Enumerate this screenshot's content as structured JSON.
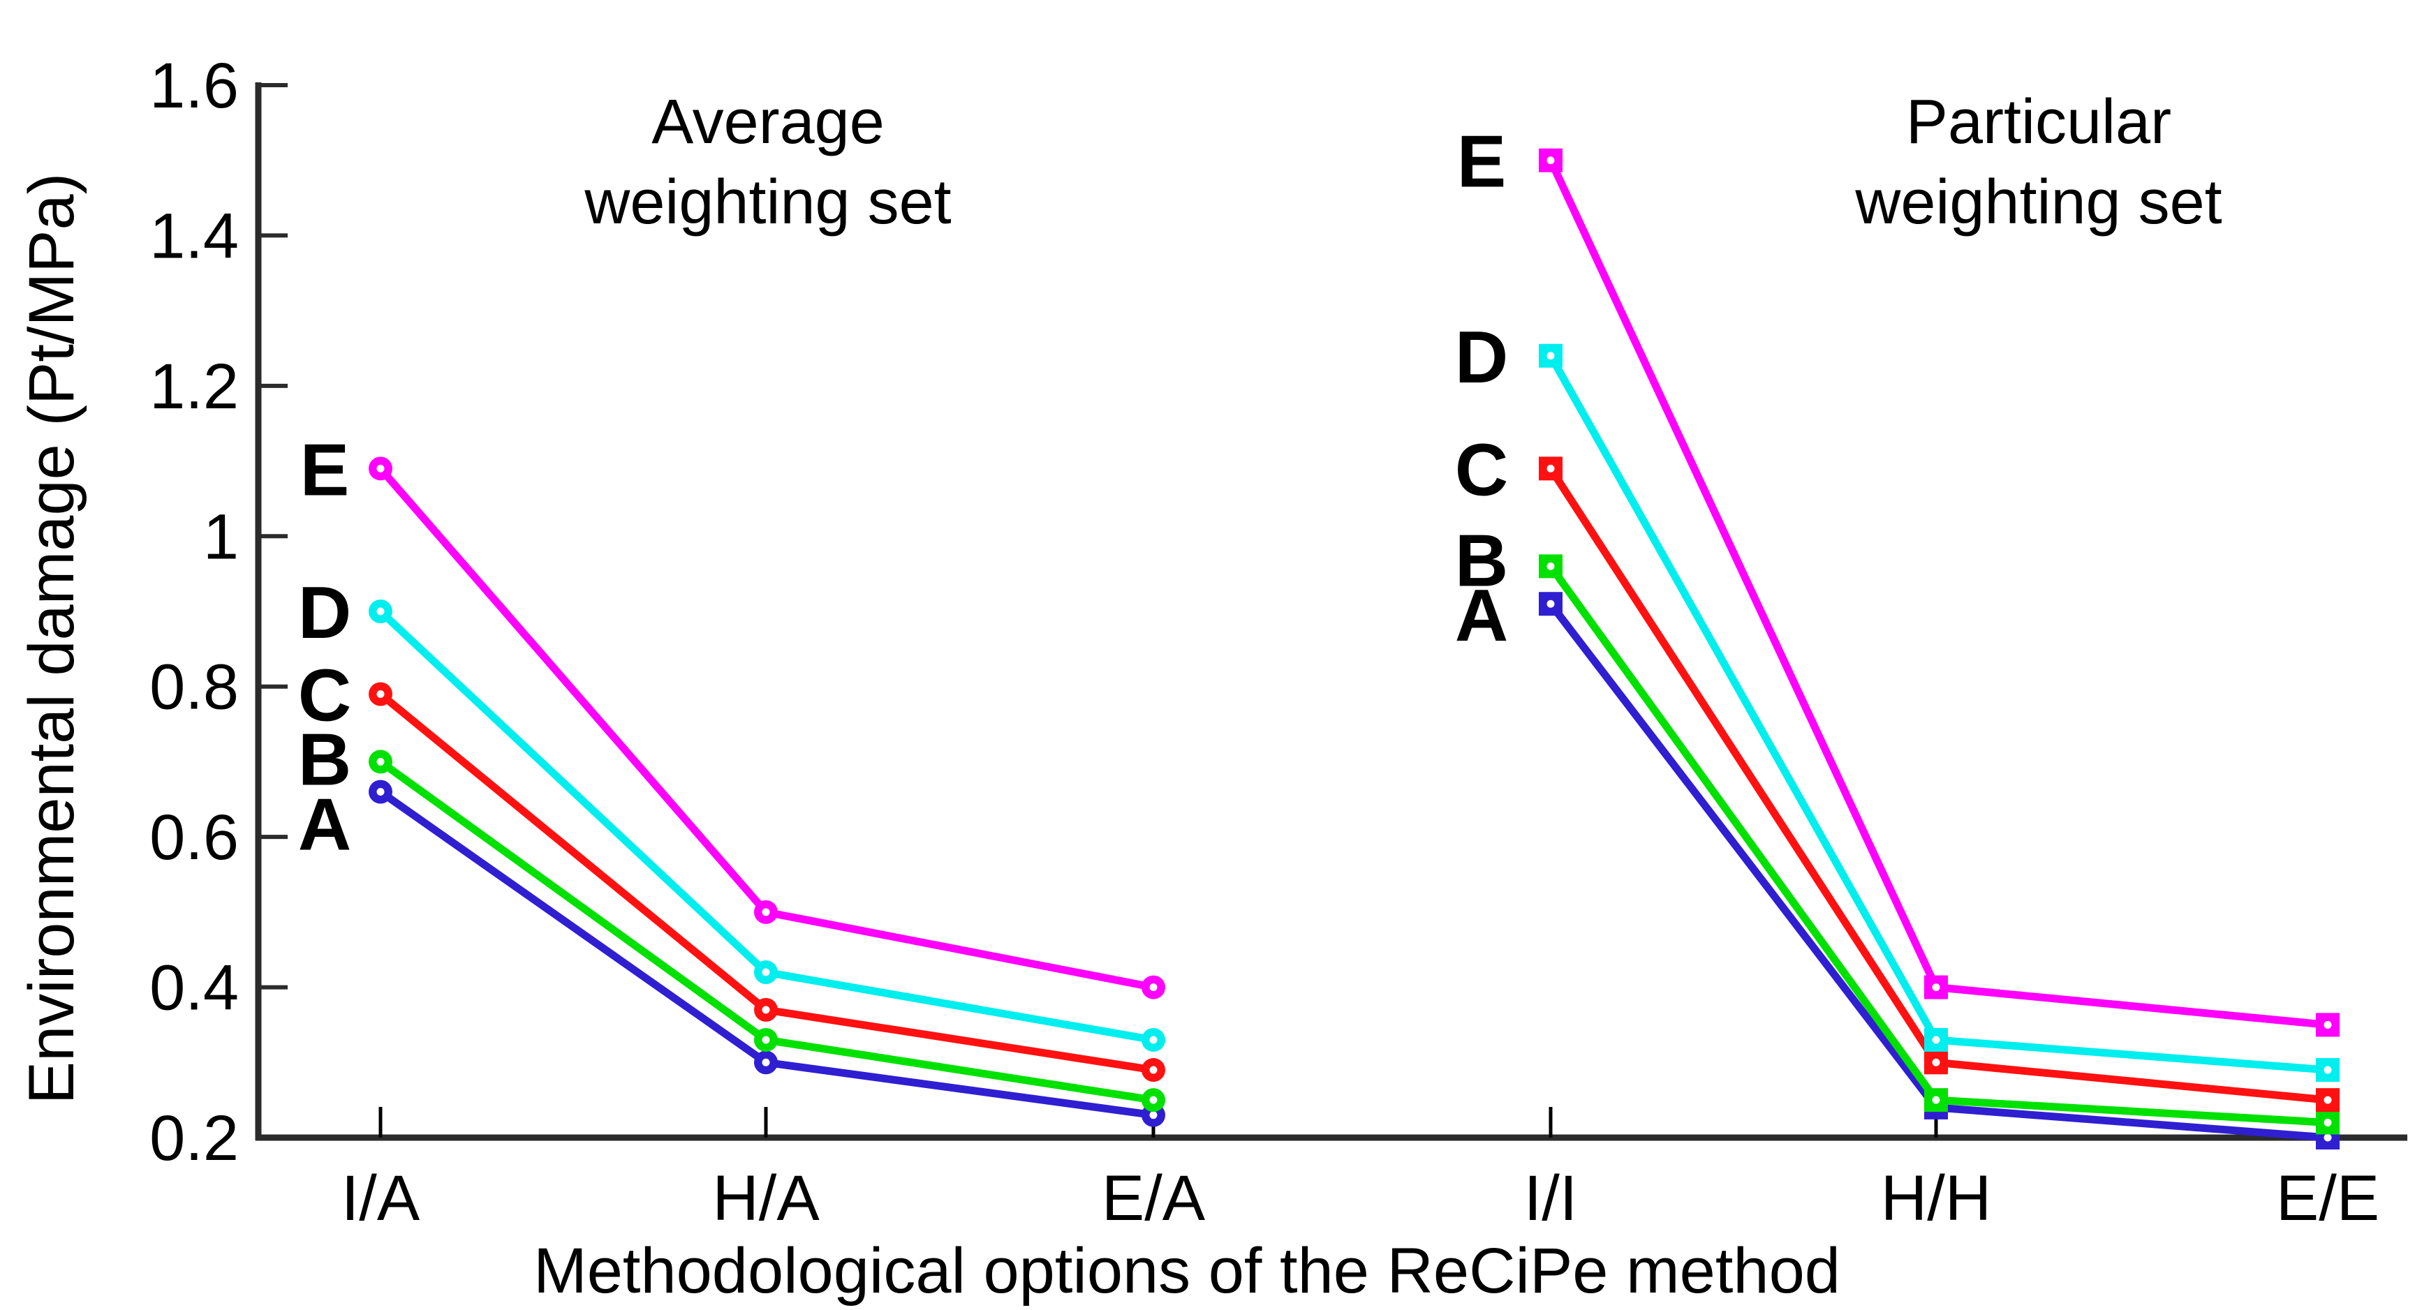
{
  "figure": {
    "background": "#ffffff",
    "axis_color": "#2b2b2b"
  },
  "chart_data": {
    "type": "line",
    "ylabel": "Environmental damage (Pt/MPa)",
    "xlabel": "Methodological options of the ReCiPe method",
    "ylim": [
      0.2,
      1.6
    ],
    "yticks": [
      0.2,
      0.4,
      0.6,
      0.8,
      1,
      1.2,
      1.4,
      1.6
    ],
    "ytick_labels": [
      "0.2",
      "0.4",
      "0.6",
      "0.8",
      "1",
      "1.2",
      "1.4",
      "1.6"
    ],
    "grid": "off",
    "legend_position": "inline-left-of-first-point",
    "panels": [
      {
        "title1": "Average",
        "title2": "weighting set",
        "marker": "circle",
        "categories": [
          "I/A",
          "H/A",
          "E/A"
        ],
        "series": [
          {
            "name": "A",
            "color": "#2f1fd1",
            "values": [
              0.66,
              0.3,
              0.23
            ],
            "label_dy": 45
          },
          {
            "name": "B",
            "color": "#00e100",
            "values": [
              0.7,
              0.33,
              0.25
            ],
            "label_dy": -5
          },
          {
            "name": "C",
            "color": "#ff1111",
            "values": [
              0.79,
              0.37,
              0.29
            ],
            "label_dy": 0
          },
          {
            "name": "D",
            "color": "#00eeee",
            "values": [
              0.9,
              0.42,
              0.33
            ],
            "label_dy": 0
          },
          {
            "name": "E",
            "color": "#ff00ff",
            "values": [
              1.09,
              0.5,
              0.4
            ],
            "label_dy": 0
          }
        ]
      },
      {
        "title1": "Particular",
        "title2": "weighting set",
        "marker": "square",
        "categories": [
          "I/I",
          "H/H",
          "E/E"
        ],
        "series": [
          {
            "name": "A",
            "color": "#2f1fd1",
            "values": [
              0.91,
              0.24,
              0.2
            ],
            "label_dy": 15
          },
          {
            "name": "B",
            "color": "#00e100",
            "values": [
              0.96,
              0.25,
              0.22
            ],
            "label_dy": -10
          },
          {
            "name": "C",
            "color": "#ff1111",
            "values": [
              1.09,
              0.3,
              0.25
            ],
            "label_dy": 0
          },
          {
            "name": "D",
            "color": "#00eeee",
            "values": [
              1.24,
              0.33,
              0.29
            ],
            "label_dy": 0
          },
          {
            "name": "E",
            "color": "#ff00ff",
            "values": [
              1.5,
              0.4,
              0.35
            ],
            "label_dy": 0
          }
        ]
      }
    ]
  }
}
